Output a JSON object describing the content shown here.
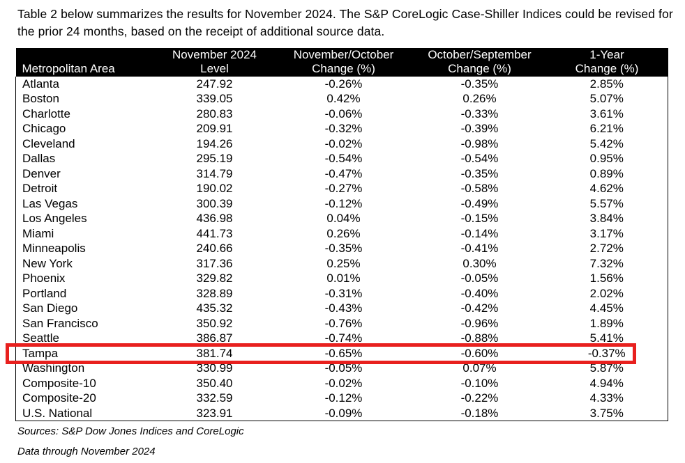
{
  "intro": "Table 2 below summarizes the results for November 2024. The S&P CoreLogic Case-Shiller Indices could be revised for the prior 24 months, based on the receipt of additional source data.",
  "table": {
    "columns": [
      {
        "line1": "",
        "line2": "Metropolitan Area"
      },
      {
        "line1": "November 2024",
        "line2": "Level"
      },
      {
        "line1": "November/October",
        "line2": "Change (%)"
      },
      {
        "line1": "October/September",
        "line2": "Change (%)"
      },
      {
        "line1": "1-Year",
        "line2": "Change (%)"
      }
    ],
    "rows": [
      {
        "area": "Atlanta",
        "level": "247.92",
        "mom": "-0.26%",
        "prev": "-0.35%",
        "yoy": "2.85%",
        "highlighted": false
      },
      {
        "area": "Boston",
        "level": "339.05",
        "mom": "0.42%",
        "prev": "0.26%",
        "yoy": "5.07%",
        "highlighted": false
      },
      {
        "area": "Charlotte",
        "level": "280.83",
        "mom": "-0.06%",
        "prev": "-0.33%",
        "yoy": "3.61%",
        "highlighted": false
      },
      {
        "area": "Chicago",
        "level": "209.91",
        "mom": "-0.32%",
        "prev": "-0.39%",
        "yoy": "6.21%",
        "highlighted": false
      },
      {
        "area": "Cleveland",
        "level": "194.26",
        "mom": "-0.02%",
        "prev": "-0.98%",
        "yoy": "5.42%",
        "highlighted": false
      },
      {
        "area": "Dallas",
        "level": "295.19",
        "mom": "-0.54%",
        "prev": "-0.54%",
        "yoy": "0.95%",
        "highlighted": false
      },
      {
        "area": "Denver",
        "level": "314.79",
        "mom": "-0.47%",
        "prev": "-0.35%",
        "yoy": "0.89%",
        "highlighted": false
      },
      {
        "area": "Detroit",
        "level": "190.02",
        "mom": "-0.27%",
        "prev": "-0.58%",
        "yoy": "4.62%",
        "highlighted": false
      },
      {
        "area": "Las Vegas",
        "level": "300.39",
        "mom": "-0.12%",
        "prev": "-0.49%",
        "yoy": "5.57%",
        "highlighted": false
      },
      {
        "area": "Los Angeles",
        "level": "436.98",
        "mom": "0.04%",
        "prev": "-0.15%",
        "yoy": "3.84%",
        "highlighted": false
      },
      {
        "area": "Miami",
        "level": "441.73",
        "mom": "0.26%",
        "prev": "-0.14%",
        "yoy": "3.17%",
        "highlighted": false
      },
      {
        "area": "Minneapolis",
        "level": "240.66",
        "mom": "-0.35%",
        "prev": "-0.41%",
        "yoy": "2.72%",
        "highlighted": false
      },
      {
        "area": "New York",
        "level": "317.36",
        "mom": "0.25%",
        "prev": "0.30%",
        "yoy": "7.32%",
        "highlighted": false
      },
      {
        "area": "Phoenix",
        "level": "329.82",
        "mom": "0.01%",
        "prev": "-0.05%",
        "yoy": "1.56%",
        "highlighted": false
      },
      {
        "area": "Portland",
        "level": "328.89",
        "mom": "-0.31%",
        "prev": "-0.40%",
        "yoy": "2.02%",
        "highlighted": false
      },
      {
        "area": "San Diego",
        "level": "435.32",
        "mom": "-0.43%",
        "prev": "-0.42%",
        "yoy": "4.45%",
        "highlighted": false
      },
      {
        "area": "San Francisco",
        "level": "350.92",
        "mom": "-0.76%",
        "prev": "-0.96%",
        "yoy": "1.89%",
        "highlighted": false
      },
      {
        "area": "Seattle",
        "level": "386.87",
        "mom": "-0.74%",
        "prev": "-0.88%",
        "yoy": "5.41%",
        "highlighted": false
      },
      {
        "area": "Tampa",
        "level": "381.74",
        "mom": "-0.65%",
        "prev": "-0.60%",
        "yoy": "-0.37%",
        "highlighted": true
      },
      {
        "area": "Washington",
        "level": "330.99",
        "mom": "-0.05%",
        "prev": "0.07%",
        "yoy": "5.87%",
        "highlighted": false
      },
      {
        "area": "Composite-10",
        "level": "350.40",
        "mom": "-0.02%",
        "prev": "-0.10%",
        "yoy": "4.94%",
        "highlighted": false
      },
      {
        "area": "Composite-20",
        "level": "332.59",
        "mom": "-0.12%",
        "prev": "-0.22%",
        "yoy": "4.33%",
        "highlighted": false
      },
      {
        "area": "U.S. National",
        "level": "323.91",
        "mom": "-0.09%",
        "prev": "-0.18%",
        "yoy": "3.75%",
        "highlighted": false
      }
    ]
  },
  "footer": {
    "sources": "Sources: S&P Dow Jones Indices and CoreLogic",
    "data_through": "Data through November 2024"
  },
  "colors": {
    "header_bg": "#000000",
    "header_text": "#ffffff",
    "highlight_red": "#e8201e"
  },
  "chart_data": {
    "type": "table",
    "title": "Table 2 — S&P CoreLogic Case-Shiller Indices, November 2024 results",
    "columns": [
      "Metropolitan Area",
      "November 2024 Level",
      "November/October Change (%)",
      "October/September Change (%)",
      "1-Year Change (%)"
    ],
    "highlighted_row": "Tampa"
  }
}
